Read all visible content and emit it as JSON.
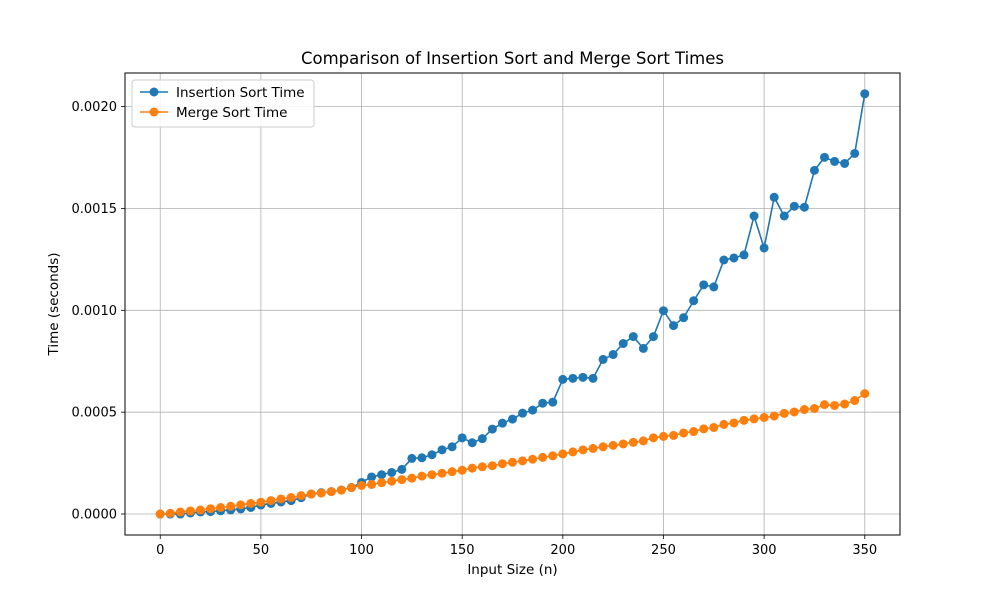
{
  "chart_data": {
    "type": "line",
    "title": "Comparison of Insertion Sort and Merge Sort Times",
    "xlabel": "Input Size (n)",
    "ylabel": "Time (seconds)",
    "xlim": [
      -17.5,
      367.5
    ],
    "ylim": [
      -0.000103,
      0.002165
    ],
    "xticks": [
      0,
      50,
      100,
      150,
      200,
      250,
      300,
      350
    ],
    "xtick_labels": [
      "0",
      "50",
      "100",
      "150",
      "200",
      "250",
      "300",
      "350"
    ],
    "yticks": [
      0,
      0.0005,
      0.001,
      0.0015,
      0.002
    ],
    "ytick_labels": [
      "0.0000",
      "0.0005",
      "0.0010",
      "0.0015",
      "0.0020"
    ],
    "grid": true,
    "legend_position": "upper-left",
    "x": [
      0,
      5,
      10,
      15,
      20,
      25,
      30,
      35,
      40,
      45,
      50,
      55,
      60,
      65,
      70,
      75,
      80,
      85,
      90,
      95,
      100,
      105,
      110,
      115,
      120,
      125,
      130,
      135,
      140,
      145,
      150,
      155,
      160,
      165,
      170,
      175,
      180,
      185,
      190,
      195,
      200,
      205,
      210,
      215,
      220,
      225,
      230,
      235,
      240,
      245,
      250,
      255,
      260,
      265,
      270,
      275,
      280,
      285,
      290,
      295,
      300,
      305,
      310,
      315,
      320,
      325,
      330,
      335,
      340,
      345,
      350
    ],
    "series": [
      {
        "name": "Insertion Sort Time",
        "color": "#1f77b4",
        "marker": "circle",
        "values": [
          0.0,
          0.0,
          0.0,
          5e-06,
          1e-05,
          1.2e-05,
          1.6e-05,
          2e-05,
          2.5e-05,
          3.2e-05,
          4.4e-05,
          5.2e-05,
          5.9e-05,
          6.6e-05,
          8e-05,
          9.8e-05,
          0.000105,
          0.00011,
          0.000118,
          0.00013,
          0.000155,
          0.000182,
          0.000193,
          0.000204,
          0.000219,
          0.000273,
          0.000276,
          0.000291,
          0.000315,
          0.00033,
          0.000374,
          0.00035,
          0.00037,
          0.000417,
          0.000446,
          0.000466,
          0.000495,
          0.00051,
          0.000544,
          0.000549,
          0.000661,
          0.000666,
          0.000671,
          0.000666,
          0.000759,
          0.000783,
          0.000837,
          0.000871,
          0.000813,
          0.000871,
          0.000998,
          0.000925,
          0.000964,
          0.001047,
          0.001125,
          0.001115,
          0.001247,
          0.001257,
          0.001272,
          0.001463,
          0.001306,
          0.001555,
          0.001463,
          0.001511,
          0.001506,
          0.001687,
          0.001751,
          0.001731,
          0.001721,
          0.00177,
          0.002063
        ]
      },
      {
        "name": "Merge Sort Time",
        "color": "#ff7f0e",
        "marker": "circle",
        "values": [
          0.0,
          4e-06,
          1e-05,
          1.5e-05,
          2e-05,
          2.6e-05,
          3.2e-05,
          3.8e-05,
          4.5e-05,
          5.2e-05,
          5.8e-05,
          6.6e-05,
          7.4e-05,
          8.1e-05,
          9e-05,
          9.8e-05,
          0.000103,
          0.00011,
          0.000117,
          0.00013,
          0.00014,
          0.000145,
          0.000154,
          0.000161,
          0.000169,
          0.000176,
          0.000186,
          0.000193,
          0.0002,
          0.000208,
          0.000215,
          0.000225,
          0.000232,
          0.000237,
          0.000247,
          0.000254,
          0.000261,
          0.000269,
          0.000278,
          0.000286,
          0.000295,
          0.000305,
          0.000315,
          0.000322,
          0.00033,
          0.000337,
          0.000344,
          0.000352,
          0.000359,
          0.000374,
          0.000381,
          0.000386,
          0.000398,
          0.000405,
          0.000418,
          0.000425,
          0.00044,
          0.000447,
          0.00046,
          0.000467,
          0.000474,
          0.000481,
          0.000494,
          0.000501,
          0.000513,
          0.000518,
          0.000537,
          0.000533,
          0.00054,
          0.000557,
          0.000591
        ]
      }
    ]
  }
}
